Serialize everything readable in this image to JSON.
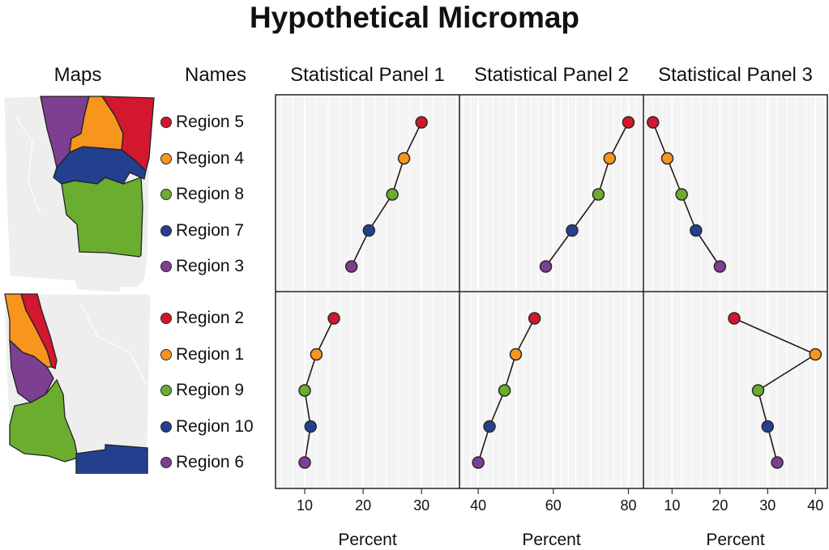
{
  "title": "Hypothetical Micromap",
  "headers": {
    "maps": "Maps",
    "names": "Names",
    "panels": [
      "Statistical Panel 1",
      "Statistical Panel 2",
      "Statistical Panel 3"
    ]
  },
  "colors": {
    "red": "#d2172f",
    "orange": "#f7951d",
    "green": "#6bad2f",
    "blue": "#23408f",
    "purple": "#7d3f92",
    "panel_bg": "#f4f4f4",
    "gridline": "#ffffff",
    "map_gray": "#eeeeee",
    "line": "#2b1616"
  },
  "groups": [
    {
      "regions": [
        {
          "name": "Region 5",
          "color": "red"
        },
        {
          "name": "Region 4",
          "color": "orange"
        },
        {
          "name": "Region 8",
          "color": "green"
        },
        {
          "name": "Region 7",
          "color": "blue"
        },
        {
          "name": "Region 3",
          "color": "purple"
        }
      ]
    },
    {
      "regions": [
        {
          "name": "Region 2",
          "color": "red"
        },
        {
          "name": "Region 1",
          "color": "orange"
        },
        {
          "name": "Region 9",
          "color": "green"
        },
        {
          "name": "Region 10",
          "color": "blue"
        },
        {
          "name": "Region 6",
          "color": "purple"
        }
      ]
    }
  ],
  "chart_data": [
    {
      "type": "line",
      "title": "Statistical Panel 1",
      "xlabel": "Percent",
      "xlim": [
        5,
        36.5
      ],
      "xticks": [
        10,
        20,
        30
      ],
      "grid": true,
      "series": [
        {
          "categories": [
            "Region 5",
            "Region 4",
            "Region 8",
            "Region 7",
            "Region 3"
          ],
          "values": [
            30,
            27,
            25,
            21,
            18
          ]
        },
        {
          "categories": [
            "Region 2",
            "Region 1",
            "Region 9",
            "Region 10",
            "Region 6"
          ],
          "values": [
            15,
            12,
            10,
            11,
            10
          ]
        }
      ]
    },
    {
      "type": "line",
      "title": "Statistical Panel 2",
      "xlabel": "Percent",
      "xlim": [
        35,
        84
      ],
      "xticks": [
        40,
        60,
        80
      ],
      "grid": true,
      "series": [
        {
          "categories": [
            "Region 5",
            "Region 4",
            "Region 8",
            "Region 7",
            "Region 3"
          ],
          "values": [
            80,
            75,
            72,
            65,
            58
          ]
        },
        {
          "categories": [
            "Region 2",
            "Region 1",
            "Region 9",
            "Region 10",
            "Region 6"
          ],
          "values": [
            55,
            50,
            47,
            43,
            40
          ]
        }
      ]
    },
    {
      "type": "line",
      "title": "Statistical Panel 3",
      "xlabel": "Percent",
      "xlim": [
        4,
        42.5
      ],
      "xticks": [
        10,
        20,
        30,
        40
      ],
      "grid": true,
      "series": [
        {
          "categories": [
            "Region 5",
            "Region 4",
            "Region 8",
            "Region 7",
            "Region 3"
          ],
          "values": [
            6,
            9,
            12,
            15,
            20
          ]
        },
        {
          "categories": [
            "Region 2",
            "Region 1",
            "Region 9",
            "Region 10",
            "Region 6"
          ],
          "values": [
            23,
            40,
            28,
            30,
            32
          ]
        }
      ]
    }
  ]
}
